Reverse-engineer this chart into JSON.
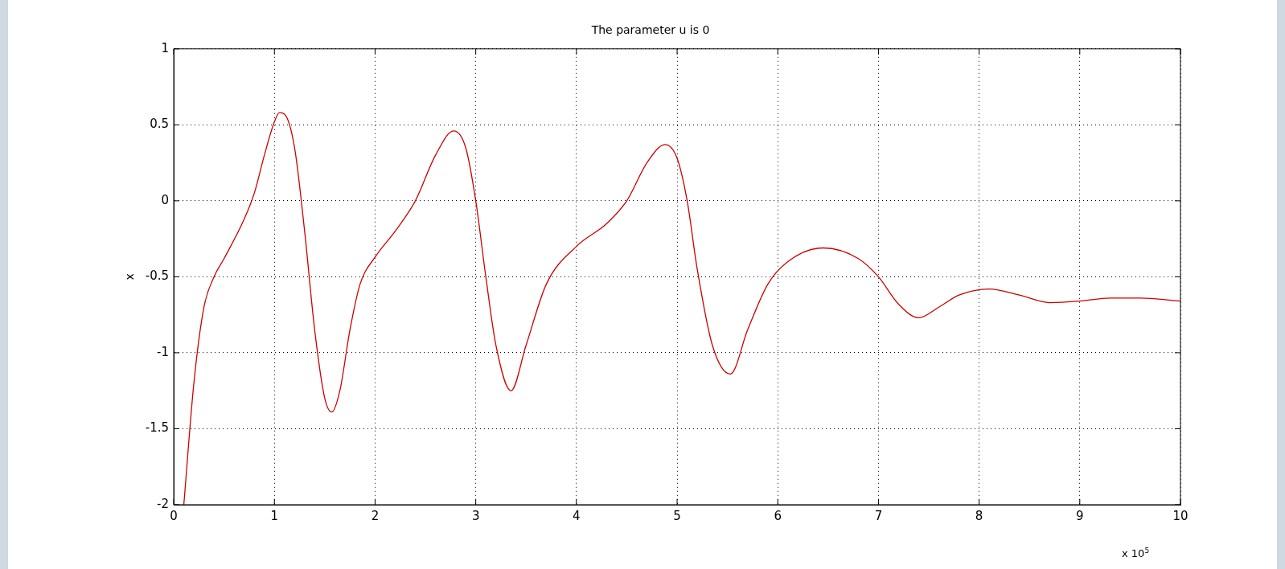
{
  "chart_data": {
    "type": "line",
    "title": "The parameter u is 0",
    "ylabel": "x",
    "annotations": [
      "x 10$^{5}$"
    ],
    "xlim": [
      0,
      10
    ],
    "xticks": [
      0,
      1,
      2,
      3,
      4,
      5,
      6,
      7,
      8,
      9,
      10
    ],
    "ylim": [
      -2,
      1
    ],
    "yticks": [
      -2,
      -1.5,
      -1,
      -0.5,
      0,
      0.5,
      1
    ],
    "grid": true,
    "line_style": "solid",
    "marker": "none",
    "series": [
      {
        "color": "#cc0000",
        "x": [
          0.1,
          0.2,
          0.3,
          0.4,
          0.5,
          0.7,
          0.8,
          0.9,
          1.0,
          1.05,
          1.1,
          1.2,
          1.3,
          1.4,
          1.5,
          1.57,
          1.65,
          1.75,
          1.85,
          2.0,
          2.2,
          2.4,
          2.6,
          2.78,
          2.9,
          3.0,
          3.1,
          3.2,
          3.35,
          3.5,
          3.7,
          4.0,
          4.3,
          4.5,
          4.7,
          4.88,
          5.0,
          5.1,
          5.2,
          5.35,
          5.53,
          5.7,
          5.9,
          6.1,
          6.45,
          6.8,
          7.0,
          7.2,
          7.4,
          7.6,
          7.8,
          8.1,
          8.4,
          8.7,
          9.0,
          9.3,
          9.6,
          10.0
        ],
        "values": [
          -2.0,
          -1.2,
          -0.7,
          -0.5,
          -0.38,
          -0.12,
          0.05,
          0.3,
          0.52,
          0.58,
          0.57,
          0.35,
          -0.2,
          -0.85,
          -1.3,
          -1.39,
          -1.25,
          -0.85,
          -0.55,
          -0.37,
          -0.2,
          0.0,
          0.3,
          0.46,
          0.35,
          0.0,
          -0.5,
          -0.95,
          -1.25,
          -0.95,
          -0.55,
          -0.3,
          -0.15,
          0.0,
          0.25,
          0.37,
          0.28,
          0.0,
          -0.45,
          -0.95,
          -1.14,
          -0.85,
          -0.55,
          -0.4,
          -0.31,
          -0.38,
          -0.5,
          -0.68,
          -0.77,
          -0.7,
          -0.62,
          -0.58,
          -0.62,
          -0.67,
          -0.66,
          -0.64,
          -0.64,
          -0.66
        ]
      }
    ]
  }
}
